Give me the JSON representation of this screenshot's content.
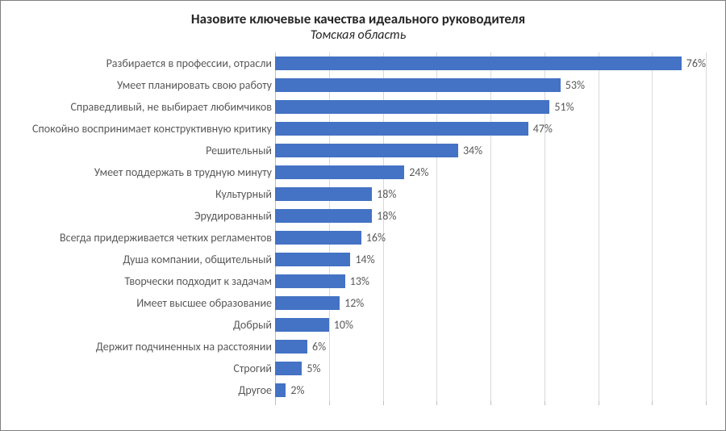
{
  "chart": {
    "type": "bar-horizontal",
    "title": "Назовите ключевые качества идеального руководителя",
    "subtitle": "Томская область",
    "title_fontsize": 17,
    "subtitle_fontsize": 16,
    "label_fontsize": 14,
    "value_fontsize": 14,
    "title_color": "#262626",
    "label_color": "#595959",
    "value_color": "#595959",
    "bar_color": "#4472c4",
    "grid_color": "#d9d9d9",
    "axis_color": "#bfbfbf",
    "background_color": "#ffffff",
    "xlim": [
      0,
      80
    ],
    "xtick_step": 10,
    "bar_row_height": 27,
    "bar_fill_ratio": 0.64,
    "y_label_width": 328,
    "categories": [
      "Разбирается в профессии, отрасли",
      "Умеет планировать свою работу",
      "Справедливый, не выбирает любимчиков",
      "Спокойно воспринимает конструктивную критику",
      "Решительный",
      "Умеет поддержать в трудную минуту",
      "Культурный",
      "Эрудированный",
      "Всегда придерживается четких регламентов",
      "Душа компании, общительный",
      "Творчески подходит к задачам",
      "Имеет высшее образование",
      "Добрый",
      "Держит подчиненных на расстоянии",
      "Строгий",
      "Другое"
    ],
    "values": [
      76,
      53,
      51,
      47,
      34,
      24,
      18,
      18,
      16,
      14,
      13,
      12,
      10,
      6,
      5,
      2
    ],
    "value_suffix": "%"
  }
}
